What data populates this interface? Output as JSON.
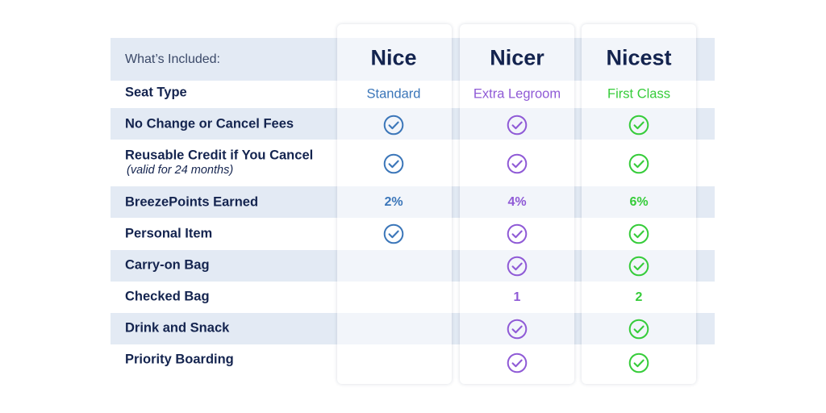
{
  "colors": {
    "nice": "#3b76b9",
    "nicer": "#8f5ad6",
    "nicest": "#36cc3a",
    "label_text": "#14244f",
    "stripe": "#e3eaf4"
  },
  "header_label": "What’s Included:",
  "tiers": [
    {
      "name": "Nice"
    },
    {
      "name": "Nicer"
    },
    {
      "name": "Nicest"
    }
  ],
  "rows": [
    {
      "label": "Seat Type",
      "cells": [
        "Standard",
        "Extra Legroom",
        "First Class"
      ]
    },
    {
      "label": "No Change or Cancel Fees",
      "cells": [
        "check",
        "check",
        "check"
      ]
    },
    {
      "label": "Reusable Credit if You Cancel",
      "sublabel": "(valid for 24 months)",
      "cells": [
        "check",
        "check",
        "check"
      ]
    },
    {
      "label": "BreezePoints Earned",
      "cells": [
        "2%",
        "4%",
        "6%"
      ]
    },
    {
      "label": "Personal Item",
      "cells": [
        "check",
        "check",
        "check"
      ]
    },
    {
      "label": "Carry-on Bag",
      "cells": [
        "",
        "check",
        "check"
      ]
    },
    {
      "label": "Checked Bag",
      "cells": [
        "",
        "1",
        "2"
      ]
    },
    {
      "label": "Drink and Snack",
      "cells": [
        "",
        "check",
        "check"
      ]
    },
    {
      "label": "Priority Boarding",
      "cells": [
        "",
        "check",
        "check"
      ]
    }
  ],
  "icons": {
    "check": "check-circle-icon"
  }
}
